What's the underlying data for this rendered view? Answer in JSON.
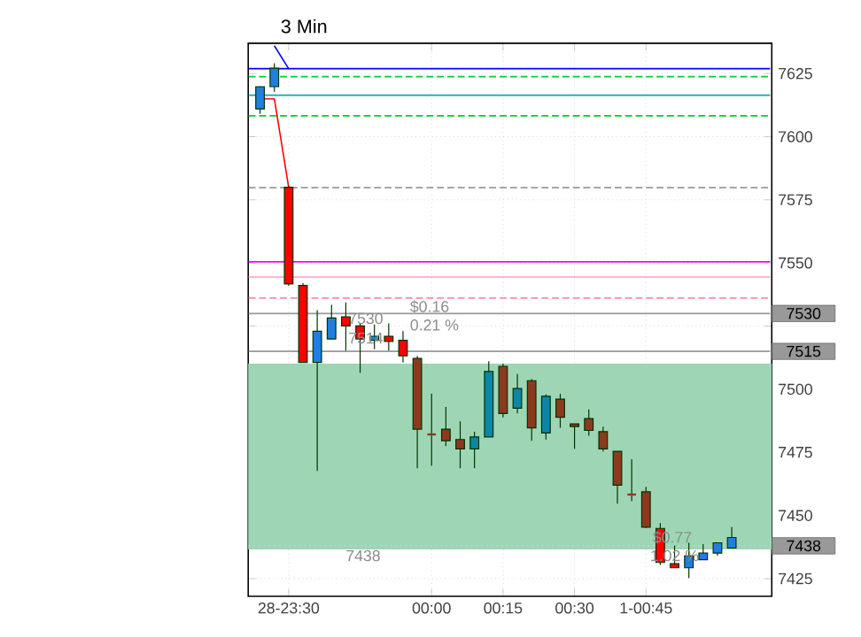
{
  "chart_data": {
    "type": "candlestick",
    "title": "3 Min",
    "categories": [
      null,
      null,
      "28-23:30",
      null,
      null,
      null,
      null,
      null,
      null,
      null,
      null,
      null,
      "00:00",
      null,
      null,
      null,
      null,
      "00:15",
      null,
      null,
      null,
      null,
      "00:30",
      null,
      null,
      null,
      null,
      "1-00:45",
      null,
      null,
      null,
      null,
      null,
      null
    ],
    "ohlc": [
      [
        7611.0,
        7620.0,
        7609.0,
        7619.8
      ],
      [
        7619.8,
        7629.1,
        7617.8,
        7627.1
      ],
      [
        7580.0,
        7580.5,
        7541.0,
        7541.7
      ],
      [
        7541.1,
        7542.0,
        7510.5,
        7510.6
      ],
      [
        7510.6,
        7531.3,
        7467.7,
        7523.0
      ],
      [
        7519.9,
        7533.4,
        7519.9,
        7528.2
      ],
      [
        7528.7,
        7534.4,
        7515.3,
        7525.1
      ],
      [
        7525.1,
        7526.0,
        7506.5,
        7519.9
      ],
      [
        7519.4,
        7525.6,
        7515.8,
        7521.0
      ],
      [
        7521.0,
        7526.1,
        7515.3,
        7518.9
      ],
      [
        7519.4,
        7523.0,
        7510.6,
        7513.2
      ],
      [
        7512.2,
        7513.2,
        7468.7,
        7484.2
      ],
      [
        7482.1,
        7498.2,
        7469.7,
        7482.1
      ],
      [
        7484.2,
        7493.0,
        7477.5,
        7479.6
      ],
      [
        7480.1,
        7487.3,
        7468.7,
        7476.4
      ],
      [
        7476.4,
        7483.2,
        7468.7,
        7481.1
      ],
      [
        7481.1,
        7511.1,
        7481.1,
        7507.0
      ],
      [
        7509.1,
        7510.1,
        7488.9,
        7490.4
      ],
      [
        7492.5,
        7506.0,
        7490.4,
        7500.3
      ],
      [
        7503.4,
        7504.0,
        7479.6,
        7484.7
      ],
      [
        7482.7,
        7498.0,
        7480.1,
        7497.2
      ],
      [
        7496.1,
        7498.2,
        7484.7,
        7488.9
      ],
      [
        7486.3,
        7486.3,
        7476.4,
        7485.2
      ],
      [
        7488.4,
        7492.0,
        7481.6,
        7483.7
      ],
      [
        7483.2,
        7485.2,
        7475.4,
        7476.4
      ],
      [
        7475.4,
        7475.4,
        7454.7,
        7462.0
      ],
      [
        7458.3,
        7472.3,
        7455.7,
        7458.3
      ],
      [
        7459.4,
        7461.4,
        7445.0,
        7445.4
      ],
      [
        7444.9,
        7447.0,
        7430.4,
        7431.4
      ],
      [
        7430.9,
        7438.1,
        7429.3,
        7429.3
      ],
      [
        7429.3,
        7439.2,
        7425.2,
        7434.0
      ],
      [
        7432.5,
        7438.7,
        7432.5,
        7435.1
      ],
      [
        7435.1,
        7439.2,
        7434.0,
        7439.2
      ],
      [
        7437.1,
        7445.4,
        7437.1,
        7441.3
      ]
    ],
    "colors": [
      "#1e7fe0",
      "#1e7fe0",
      "#ff0000",
      "#ff0000",
      "#1e7fe0",
      "#1e7fe0",
      "#ff0000",
      "#ff0000",
      "#1e7fe0",
      "#ff0000",
      "#ff0000",
      "#8b3a1e",
      "#8b3a1e",
      "#8b3a1e",
      "#8b3a1e",
      "#0b86a8",
      "#0b86a8",
      "#8b3a1e",
      "#0b86a8",
      "#8b3a1e",
      "#0b86a8",
      "#8b3a1e",
      "#8b3a1e",
      "#8b3a1e",
      "#8b3a1e",
      "#8b3a1e",
      "#8b3a1e",
      "#8b3a1e",
      "#ff0000",
      "#ff0000",
      "#1e7fe0",
      "#1e7fe0",
      "#1e7fe0",
      "#1e7fe0"
    ],
    "series": [
      {
        "type": "line",
        "color": "#ff0000",
        "values": [
          7615.0,
          7615.0,
          7580.0,
          null,
          null,
          null,
          null,
          null,
          null,
          null,
          null,
          null,
          null,
          null,
          null,
          null,
          null,
          null,
          null,
          null,
          null,
          null,
          null,
          null,
          null,
          null,
          null,
          null,
          null,
          null,
          null,
          null,
          null,
          null
        ]
      },
      {
        "type": "line",
        "color": "#0000ff",
        "values": [
          null,
          7636.0,
          7626.9,
          null,
          null,
          null,
          null,
          null,
          null,
          null,
          null,
          null,
          null,
          null,
          null,
          null,
          null,
          null,
          null,
          null,
          null,
          null,
          null,
          null,
          null,
          null,
          null,
          null,
          null,
          null,
          null,
          null,
          null,
          null
        ]
      }
    ],
    "ylim": [
      7418,
      7637
    ],
    "yticks": [
      7425,
      7450,
      7475,
      7500,
      {
        "value": 7525,
        "label": null
      },
      7550,
      7575,
      7600,
      7625
    ],
    "grid": true,
    "bands": [
      {
        "axis": "y",
        "from": 7436.6,
        "to": 7510.1,
        "color": "#9ed6b5"
      }
    ],
    "ref_lines": [
      {
        "axis": "y",
        "value": 7626.9,
        "color": "#0000ff",
        "line_style": "solid"
      },
      {
        "axis": "y",
        "value": 7623.8,
        "color": "#00cc33",
        "line_style": "dashed"
      },
      {
        "axis": "y",
        "value": 7616.4,
        "color": "#00b0b0",
        "line_style": "solid"
      },
      {
        "axis": "y",
        "value": 7608.3,
        "color": "#00cc33",
        "line_style": "dashed"
      },
      {
        "axis": "y",
        "value": 7579.8,
        "color": "#999999",
        "line_style": "dashed"
      },
      {
        "axis": "y",
        "value": 7550.5,
        "color": "#ff00ff",
        "line_style": "solid"
      },
      {
        "axis": "y",
        "value": 7544.4,
        "color": "#ffaad4",
        "line_style": "solid"
      },
      {
        "axis": "y",
        "value": 7536.1,
        "color": "#ff88bb",
        "line_style": "dashed"
      },
      {
        "axis": "y",
        "value": 7530,
        "label": "7530",
        "color": "#999999",
        "line_style": "solid"
      },
      {
        "axis": "y",
        "value": 7515,
        "label": "7515",
        "color": "#999999",
        "line_style": "solid"
      },
      {
        "axis": "y",
        "value": 7438,
        "label": "7438",
        "color": "#cccccc",
        "line_style": "dotted"
      }
    ],
    "annotations": [
      "$0.16",
      "0.21 %",
      "7530",
      "7514",
      "$0.77",
      "1.02 %",
      "7438"
    ]
  }
}
